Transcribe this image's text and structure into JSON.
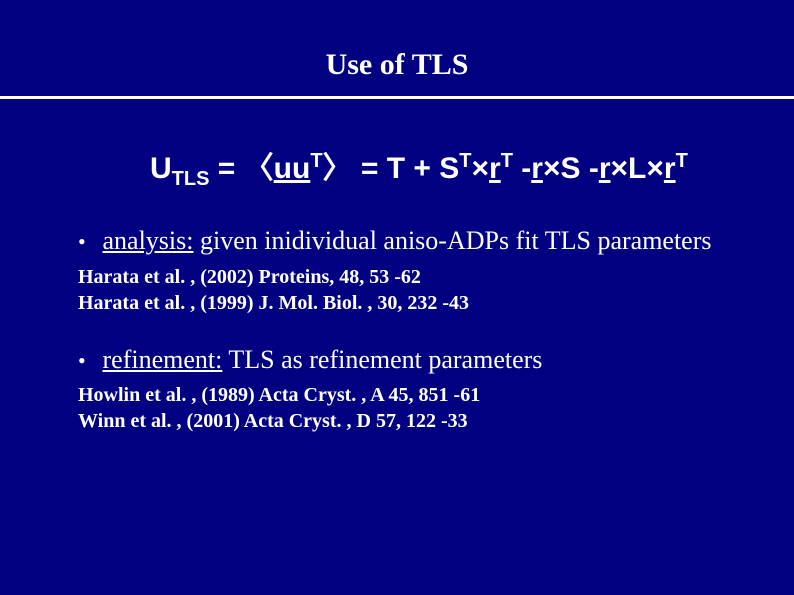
{
  "colors": {
    "background": "#000080",
    "text": "#ffffff",
    "rule": "#ffffff"
  },
  "title": "Use of TLS",
  "equation": {
    "lhs_base": "U",
    "lhs_sub": "TLS",
    "eq1": " = ",
    "lang": "〈",
    "uu": "uu",
    "uu_sup": "T",
    "rang": "〉",
    "eq2": " = ",
    "t1": "T + S",
    "t1_sup": "T",
    "cross1": "×",
    "r1": "r",
    "r1_sup": "T",
    "sp1": " -",
    "r2": "r",
    "cross2": "×",
    "s2": "S  -",
    "r3": "r",
    "cross3": "×",
    "L": "L",
    "cross4": "×",
    "r4": "r",
    "r4_sup": "T"
  },
  "bullets": [
    {
      "keyword": "analysis:",
      "rest": " given inidividual aniso-ADPs fit TLS parameters",
      "refs": [
        "Harata et al. , (2002) Proteins, 48, 53 -62",
        "Harata et al. , (1999) J. Mol. Biol. , 30, 232 -43"
      ]
    },
    {
      "keyword": "refinement:",
      "rest": " TLS as refinement parameters",
      "refs": [
        "Howlin et al. , (1989) Acta Cryst. , A 45, 851 -61",
        "Winn et al. , (2001) Acta Cryst. , D 57, 122 -33"
      ]
    }
  ]
}
